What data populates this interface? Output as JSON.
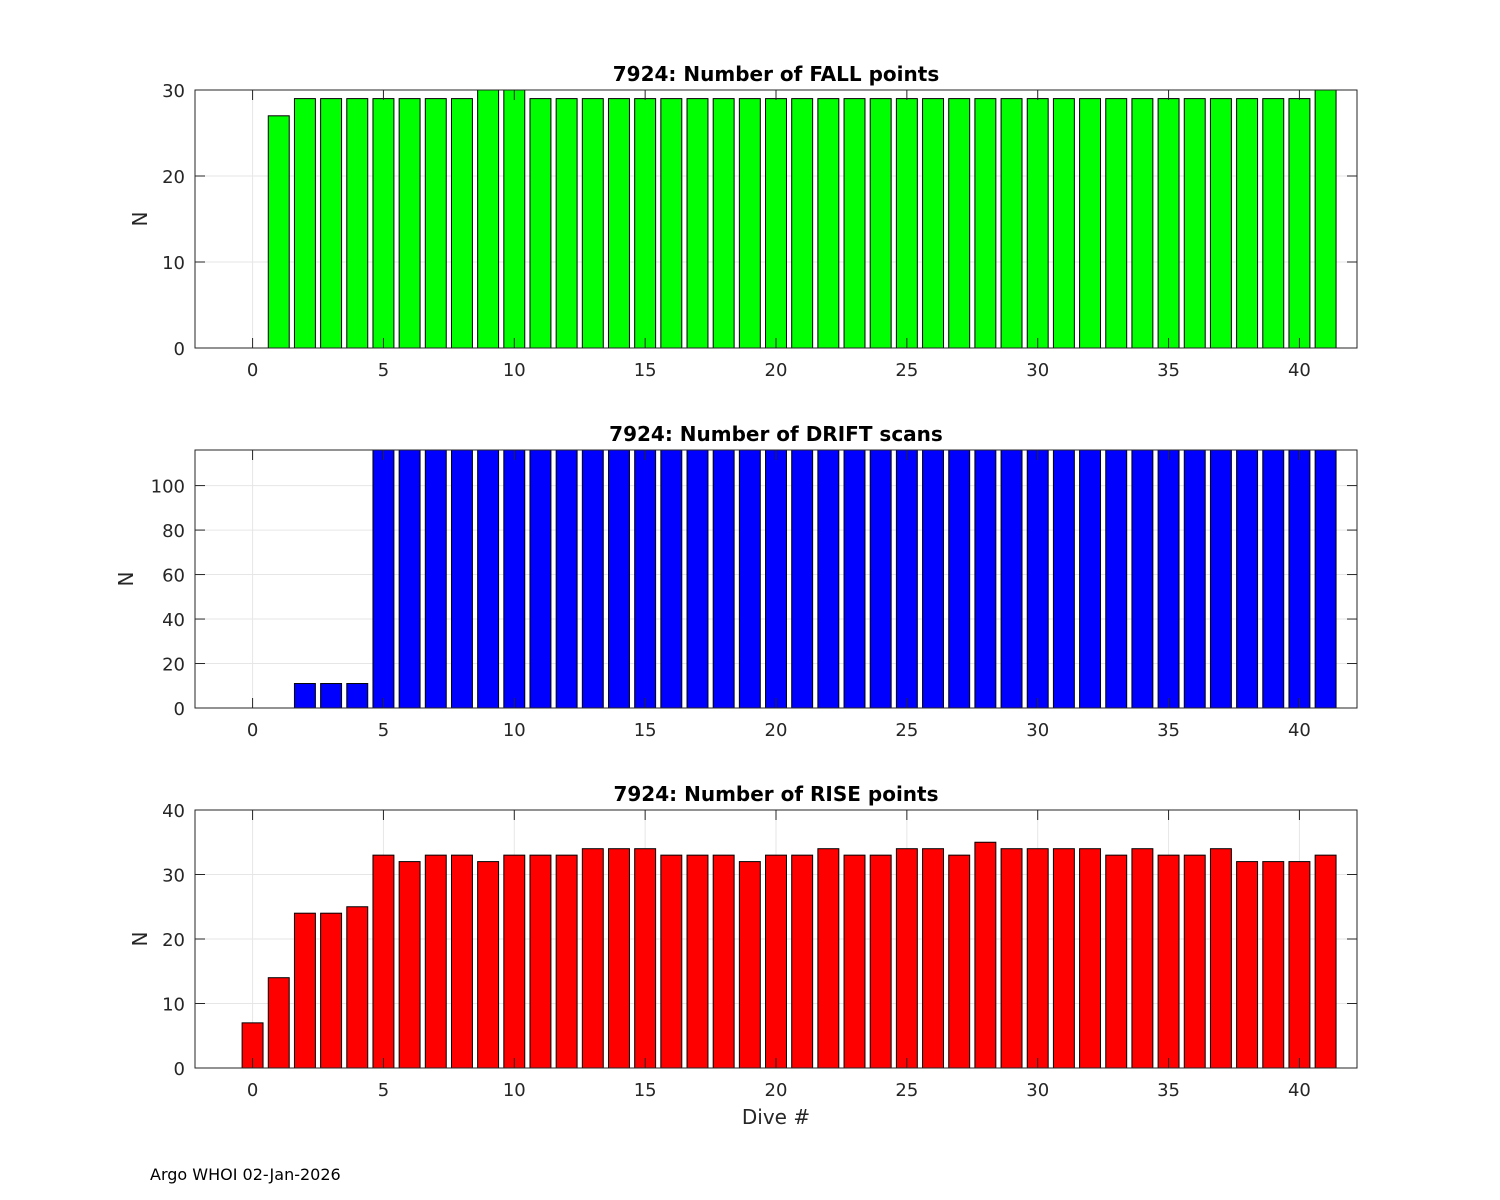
{
  "footer": {
    "note": "Argo WHOI 02-Jan-2026"
  },
  "chart_data": [
    {
      "type": "bar",
      "title": "7924: Number of FALL points",
      "xlabel": "",
      "ylabel": "N",
      "xlim": [
        -2.2,
        42.2
      ],
      "ylim": [
        0,
        30
      ],
      "xticks": [
        0,
        5,
        10,
        15,
        20,
        25,
        30,
        35,
        40
      ],
      "yticks": [
        0,
        10,
        20,
        30
      ],
      "grid": true,
      "color": "#00ff00",
      "x": [
        0,
        1,
        2,
        3,
        4,
        5,
        6,
        7,
        8,
        9,
        10,
        11,
        12,
        13,
        14,
        15,
        16,
        17,
        18,
        19,
        20,
        21,
        22,
        23,
        24,
        25,
        26,
        27,
        28,
        29,
        30,
        31,
        32,
        33,
        34,
        35,
        36,
        37,
        38,
        39,
        40,
        41
      ],
      "values": [
        0,
        27,
        29,
        29,
        29,
        29,
        29,
        29,
        29,
        30,
        30,
        29,
        29,
        29,
        29,
        29,
        29,
        29,
        29,
        29,
        29,
        29,
        29,
        29,
        29,
        29,
        29,
        29,
        29,
        29,
        29,
        29,
        29,
        29,
        29,
        29,
        29,
        29,
        29,
        29,
        29,
        30
      ]
    },
    {
      "type": "bar",
      "title": "7924: Number of DRIFT scans",
      "xlabel": "",
      "ylabel": "N",
      "xlim": [
        -2.2,
        42.2
      ],
      "ylim": [
        0,
        116
      ],
      "xticks": [
        0,
        5,
        10,
        15,
        20,
        25,
        30,
        35,
        40
      ],
      "yticks": [
        0,
        20,
        40,
        60,
        80,
        100
      ],
      "grid": true,
      "color": "#0000ff",
      "x": [
        -1,
        0,
        1,
        2,
        3,
        4,
        5,
        6,
        7,
        8,
        9,
        10,
        11,
        12,
        13,
        14,
        15,
        16,
        17,
        18,
        19,
        20,
        21,
        22,
        23,
        24,
        25,
        26,
        27,
        28,
        29,
        30,
        31,
        32,
        33,
        34,
        35,
        36,
        37,
        38,
        39,
        40,
        41
      ],
      "values": [
        0,
        0,
        0,
        11,
        11,
        11,
        116,
        116,
        116,
        116,
        116,
        116,
        116,
        116,
        116,
        116,
        116,
        116,
        116,
        116,
        116,
        116,
        116,
        116,
        116,
        116,
        116,
        116,
        116,
        116,
        116,
        116,
        116,
        116,
        116,
        116,
        116,
        116,
        116,
        116,
        116,
        116,
        116
      ]
    },
    {
      "type": "bar",
      "title": "7924: Number of RISE points",
      "xlabel": "Dive #",
      "ylabel": "N",
      "xlim": [
        -2.2,
        42.2
      ],
      "ylim": [
        0,
        40
      ],
      "xticks": [
        0,
        5,
        10,
        15,
        20,
        25,
        30,
        35,
        40
      ],
      "yticks": [
        0,
        10,
        20,
        30,
        40
      ],
      "grid": true,
      "color": "#ff0000",
      "x": [
        0,
        1,
        2,
        3,
        4,
        5,
        6,
        7,
        8,
        9,
        10,
        11,
        12,
        13,
        14,
        15,
        16,
        17,
        18,
        19,
        20,
        21,
        22,
        23,
        24,
        25,
        26,
        27,
        28,
        29,
        30,
        31,
        32,
        33,
        34,
        35,
        36,
        37,
        38,
        39,
        40,
        41
      ],
      "values": [
        7,
        14,
        24,
        24,
        25,
        33,
        32,
        33,
        33,
        32,
        33,
        33,
        33,
        34,
        34,
        34,
        33,
        33,
        33,
        32,
        33,
        33,
        34,
        33,
        33,
        34,
        34,
        33,
        35,
        34,
        34,
        34,
        34,
        33,
        34,
        33,
        33,
        34,
        32,
        32,
        32,
        33
      ]
    }
  ]
}
